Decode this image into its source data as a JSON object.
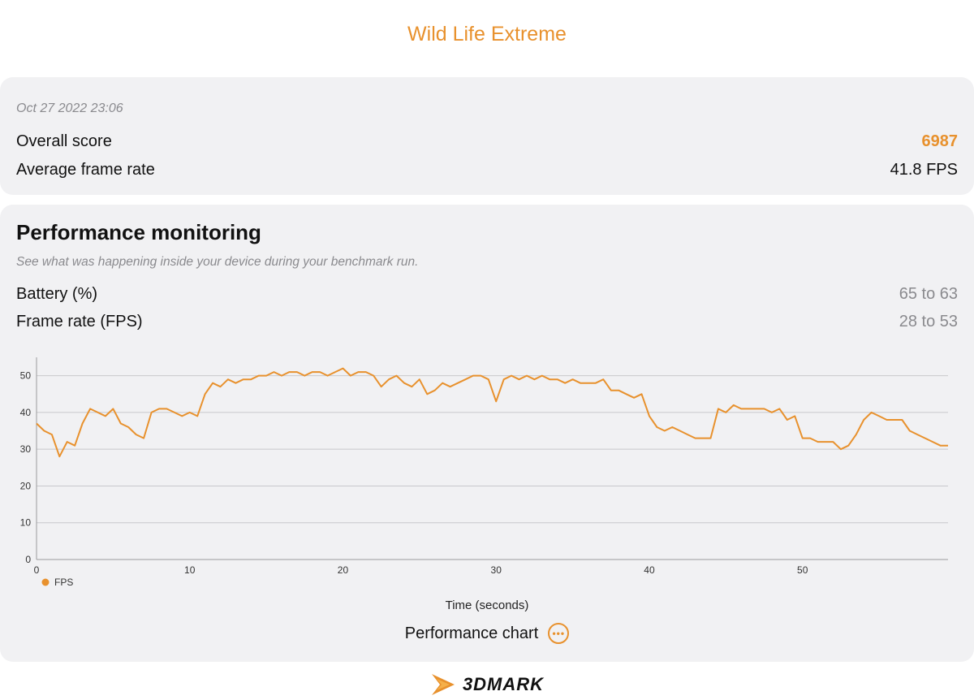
{
  "header": {
    "title": "Wild Life Extreme"
  },
  "summary": {
    "date": "Oct 27 2022 23:06",
    "overall_score_label": "Overall score",
    "overall_score_value": "6987",
    "avg_frame_rate_label": "Average frame rate",
    "avg_frame_rate_value": "41.8 FPS"
  },
  "perf": {
    "title": "Performance monitoring",
    "subtitle": "See what was happening inside your device during your benchmark run.",
    "battery_label": "Battery (%)",
    "battery_range": "65 to 63",
    "framerate_label": "Frame rate (FPS)",
    "framerate_range": "28 to 53",
    "footer_label": "Performance chart"
  },
  "brand": {
    "name": "3DMARK"
  },
  "colors": {
    "accent": "#e8912d"
  },
  "chart_data": {
    "type": "line",
    "xlabel": "Time (seconds)",
    "ylabel": "",
    "xlim": [
      0,
      59.5
    ],
    "ylim": [
      0,
      55
    ],
    "xticks": [
      0,
      10,
      20,
      30,
      40,
      50
    ],
    "yticks": [
      0,
      10,
      20,
      30,
      40,
      50
    ],
    "grid": true,
    "legend": "bottom-left",
    "series": [
      {
        "name": "FPS",
        "x": [
          0,
          0.5,
          1,
          1.5,
          2,
          2.5,
          3,
          3.5,
          4,
          4.5,
          5,
          5.5,
          6,
          6.5,
          7,
          7.5,
          8,
          8.5,
          9,
          9.5,
          10,
          10.5,
          11,
          11.5,
          12,
          12.5,
          13,
          13.5,
          14,
          14.5,
          15,
          15.5,
          16,
          16.5,
          17,
          17.5,
          18,
          18.5,
          19,
          19.5,
          20,
          20.5,
          21,
          21.5,
          22,
          22.5,
          23,
          23.5,
          24,
          24.5,
          25,
          25.5,
          26,
          26.5,
          27,
          27.5,
          28,
          28.5,
          29,
          29.5,
          30,
          30.5,
          31,
          31.5,
          32,
          32.5,
          33,
          33.5,
          34,
          34.5,
          35,
          35.5,
          36,
          36.5,
          37,
          37.5,
          38,
          38.5,
          39,
          39.5,
          40,
          40.5,
          41,
          41.5,
          42,
          42.5,
          43,
          43.5,
          44,
          44.5,
          45,
          45.5,
          46,
          46.5,
          47,
          47.5,
          48,
          48.5,
          49,
          49.5,
          50,
          50.5,
          51,
          51.5,
          52,
          52.5,
          53,
          53.5,
          54,
          54.5,
          55,
          55.5,
          56,
          56.5,
          57,
          57.5,
          58,
          58.5,
          59,
          59.5
        ],
        "values": [
          37,
          35,
          34,
          28,
          32,
          31,
          37,
          41,
          40,
          39,
          41,
          37,
          36,
          34,
          33,
          40,
          41,
          41,
          40,
          39,
          40,
          39,
          45,
          48,
          47,
          49,
          48,
          49,
          49,
          50,
          50,
          51,
          50,
          51,
          51,
          50,
          51,
          51,
          50,
          51,
          52,
          50,
          51,
          51,
          50,
          47,
          49,
          50,
          48,
          47,
          49,
          45,
          46,
          48,
          47,
          48,
          49,
          50,
          50,
          49,
          43,
          49,
          50,
          49,
          50,
          49,
          50,
          49,
          49,
          48,
          49,
          48,
          48,
          48,
          49,
          46,
          46,
          45,
          44,
          45,
          39,
          36,
          35,
          36,
          35,
          34,
          33,
          33,
          33,
          41,
          40,
          42,
          41,
          41,
          41,
          41,
          40,
          41,
          38,
          39,
          33,
          33,
          32,
          32,
          32,
          30,
          31,
          34,
          38,
          40,
          39,
          38,
          38,
          38,
          35,
          34,
          33,
          32,
          31,
          31
        ]
      }
    ]
  }
}
